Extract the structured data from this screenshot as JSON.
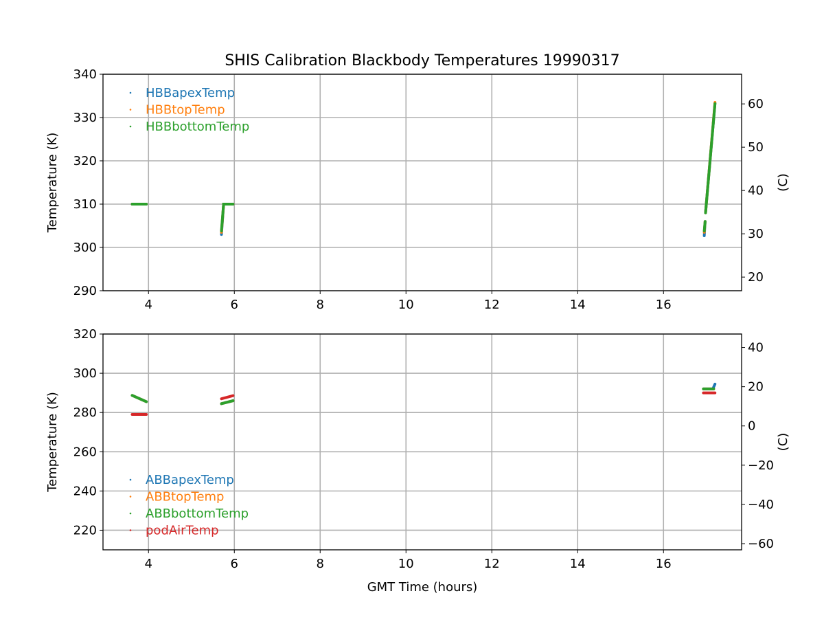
{
  "chart_data": {
    "title": "SHIS Calibration Blackbody Temperatures 19990317",
    "xlabel": "GMT Time (hours)",
    "colors": {
      "blue": "#1f77b4",
      "orange": "#ff7f0e",
      "green": "#2ca02c",
      "red": "#d62728"
    },
    "subplots": [
      {
        "type": "scatter",
        "ylabel": "Temperature (K)",
        "ylabel_right": "(C)",
        "xlim": [
          2.94,
          17.82
        ],
        "ylim": [
          290,
          340
        ],
        "xticks": [
          4,
          6,
          8,
          10,
          12,
          14,
          16
        ],
        "yticks": [
          290,
          300,
          310,
          320,
          330,
          340
        ],
        "yticks_right_C": [
          20,
          30,
          40,
          50,
          60
        ],
        "grid": true,
        "legend_position": "top-left",
        "series": [
          {
            "name": "HBBapexTemp",
            "color": "#1f77b4",
            "segments": [
              [
                [
                  3.62,
                  310
                ],
                [
                  3.95,
                  310
                ]
              ],
              [
                [
                  5.7,
                  303
                ],
                [
                  5.75,
                  310
                ],
                [
                  5.97,
                  310
                ]
              ],
              [
                [
                  16.95,
                  302.7
                ],
                [
                  16.97,
                  306
                ]
              ],
              [
                [
                  16.98,
                  308
                ],
                [
                  17.2,
                  333.3
                ]
              ]
            ]
          },
          {
            "name": "HBBtopTemp",
            "color": "#ff7f0e",
            "segments": [
              [
                [
                  3.62,
                  310
                ],
                [
                  3.95,
                  310
                ]
              ],
              [
                [
                  5.7,
                  303.5
                ],
                [
                  5.75,
                  310
                ],
                [
                  5.97,
                  310
                ]
              ],
              [
                [
                  16.95,
                  303.5
                ],
                [
                  16.97,
                  306
                ]
              ],
              [
                [
                  16.98,
                  308
                ],
                [
                  17.2,
                  333.5
                ]
              ]
            ]
          },
          {
            "name": "HBBbottomTemp",
            "color": "#2ca02c",
            "segments": [
              [
                [
                  3.62,
                  310
                ],
                [
                  3.95,
                  310
                ]
              ],
              [
                [
                  5.7,
                  303.8
                ],
                [
                  5.75,
                  310
                ],
                [
                  5.97,
                  310
                ]
              ],
              [
                [
                  16.95,
                  303.8
                ],
                [
                  16.97,
                  306
                ]
              ],
              [
                [
                  16.98,
                  308
                ],
                [
                  17.2,
                  333.2
                ]
              ]
            ]
          }
        ]
      },
      {
        "type": "scatter",
        "ylabel": "Temperature (K)",
        "ylabel_right": "(C)",
        "xlim": [
          2.94,
          17.82
        ],
        "ylim": [
          210,
          320
        ],
        "xticks": [
          4,
          6,
          8,
          10,
          12,
          14,
          16
        ],
        "yticks": [
          220,
          240,
          260,
          280,
          300,
          320
        ],
        "yticks_right_C": [
          -60,
          -40,
          -20,
          0,
          20,
          40
        ],
        "grid": true,
        "legend_position": "lower-left",
        "series": [
          {
            "name": "ABBapexTemp",
            "color": "#1f77b4",
            "segments": [
              [
                [
                  3.62,
                  288.7
                ],
                [
                  3.95,
                  285.5
                ]
              ],
              [
                [
                  5.7,
                  284.5
                ],
                [
                  5.97,
                  286
                ]
              ],
              [
                [
                  16.93,
                  292
                ],
                [
                  17.15,
                  292
                ],
                [
                  17.2,
                  294.5
                ]
              ]
            ]
          },
          {
            "name": "ABBtopTemp",
            "color": "#ff7f0e",
            "segments": [
              [
                [
                  3.62,
                  288.7
                ],
                [
                  3.95,
                  285.5
                ]
              ],
              [
                [
                  5.7,
                  284.5
                ],
                [
                  5.97,
                  286
                ]
              ],
              [
                [
                  16.93,
                  292
                ],
                [
                  17.17,
                  292
                ]
              ]
            ]
          },
          {
            "name": "ABBbottomTemp",
            "color": "#2ca02c",
            "segments": [
              [
                [
                  3.62,
                  288.7
                ],
                [
                  3.95,
                  285.5
                ]
              ],
              [
                [
                  5.7,
                  284.5
                ],
                [
                  5.97,
                  286
                ]
              ],
              [
                [
                  16.93,
                  292
                ],
                [
                  17.17,
                  292
                ]
              ]
            ]
          },
          {
            "name": "podAirTemp",
            "color": "#d62728",
            "segments": [
              [
                [
                  3.62,
                  279
                ],
                [
                  3.95,
                  279
                ]
              ],
              [
                [
                  5.7,
                  287
                ],
                [
                  5.97,
                  288.6
                ]
              ],
              [
                [
                  16.93,
                  290
                ],
                [
                  17.2,
                  290
                ]
              ]
            ]
          }
        ]
      }
    ]
  }
}
